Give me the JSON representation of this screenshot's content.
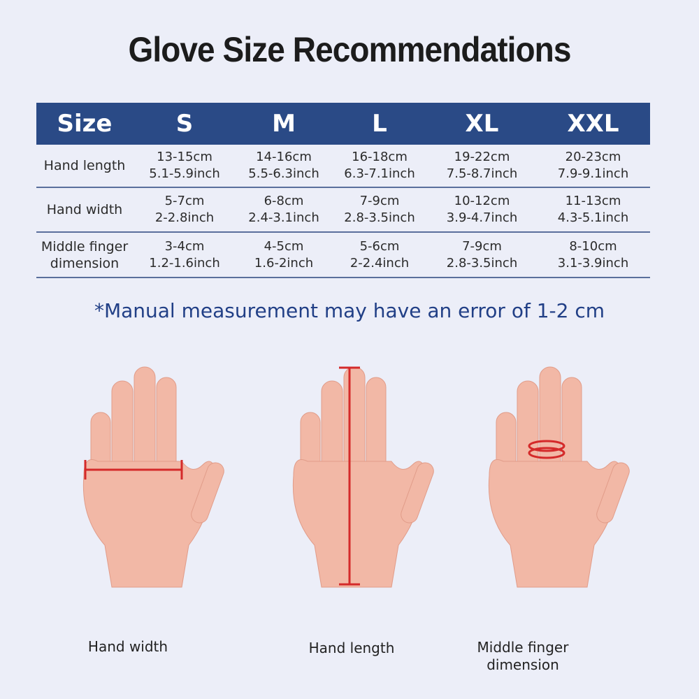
{
  "title": "Glove Size Recommendations",
  "table": {
    "headers": [
      "Size",
      "S",
      "M",
      "L",
      "XL",
      "XXL"
    ],
    "rows": [
      {
        "label": "Hand length",
        "cells": [
          [
            "13-15cm",
            "5.1-5.9inch"
          ],
          [
            "14-16cm",
            "5.5-6.3inch"
          ],
          [
            "16-18cm",
            "6.3-7.1inch"
          ],
          [
            "19-22cm",
            "7.5-8.7inch"
          ],
          [
            "20-23cm",
            "7.9-9.1inch"
          ]
        ]
      },
      {
        "label": "Hand width",
        "cells": [
          [
            "5-7cm",
            "2-2.8inch"
          ],
          [
            "6-8cm",
            "2.4-3.1inch"
          ],
          [
            "7-9cm",
            "2.8-3.5inch"
          ],
          [
            "10-12cm",
            "3.9-4.7inch"
          ],
          [
            "11-13cm",
            "4.3-5.1inch"
          ]
        ]
      },
      {
        "label": "Middle finger dimension",
        "cells": [
          [
            "3-4cm",
            "1.2-1.6inch"
          ],
          [
            "4-5cm",
            "1.6-2inch"
          ],
          [
            "5-6cm",
            "2-2.4inch"
          ],
          [
            "7-9cm",
            "2.8-3.5inch"
          ],
          [
            "8-10cm",
            "3.1-3.9inch"
          ]
        ]
      }
    ]
  },
  "note": "*Manual measurement may have an error of 1-2 cm",
  "illustrations": [
    {
      "caption": "Hand width",
      "marker": "horizontal-line"
    },
    {
      "caption": "Hand length",
      "marker": "vertical-line"
    },
    {
      "caption": "Middle finger dimension",
      "marker": "ring"
    }
  ],
  "colors": {
    "header": "#2a4a86",
    "note": "#213f86",
    "marker": "#d42a2a",
    "skin": "#f2b8a6",
    "background": "#eceef8"
  }
}
